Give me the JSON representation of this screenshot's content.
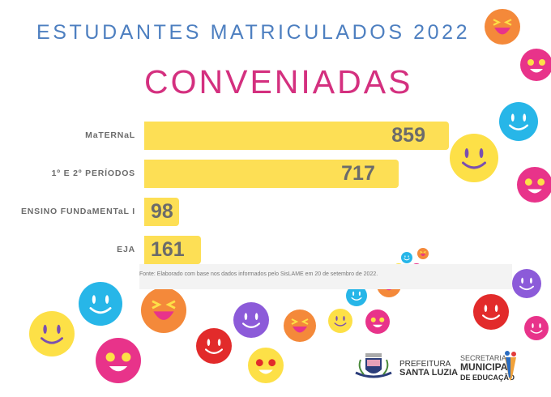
{
  "title": "ESTUDANTES MATRICULADOS 2022",
  "subtitle": "CONVENIADAS",
  "chart_data": {
    "type": "bar",
    "orientation": "horizontal",
    "title": "ESTUDANTES MATRICULADOS 2022",
    "subtitle": "CONVENIADAS",
    "categories": [
      "MaTERNaL",
      "1º E 2º PERÍODOS",
      "ENSINO FUNDaMENTaL I",
      "EJA"
    ],
    "values": [
      859,
      717,
      98,
      161
    ],
    "xlim": [
      0,
      859
    ],
    "bar_color": "#fddf55",
    "grid": false
  },
  "source_note": "Fonte: Elaborado com base nos dados informados pelo SisLAME em 20 de setembro de 2022.",
  "logos": {
    "prefeitura_line1": "PREFEITURA",
    "prefeitura_line2": "SANTA LUZIA",
    "secretaria_line1": "SECRETARIA",
    "secretaria_line2": "MUNICIPAL",
    "secretaria_line3": "DE EDUCAÇÃO"
  }
}
